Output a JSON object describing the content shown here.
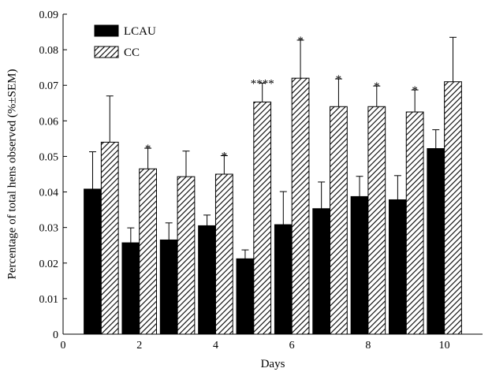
{
  "chart_data": {
    "type": "bar",
    "xlabel": "Days",
    "ylabel": "Percentage of total hens observed (%±SEM)",
    "xlim": [
      0,
      11
    ],
    "ylim": [
      0,
      0.09
    ],
    "x_ticks": [
      "0",
      "2",
      "4",
      "6",
      "8",
      "10"
    ],
    "y_ticks": [
      "0",
      "0.01",
      "0.02",
      "0.03",
      "0.04",
      "0.05",
      "0.06",
      "0.07",
      "0.08",
      "0.09"
    ],
    "categories": [
      1,
      2,
      3,
      4,
      5,
      6,
      7,
      8,
      9,
      10
    ],
    "series": [
      {
        "name": "LCAU",
        "fill": "#000000",
        "values": [
          0.0408,
          0.0257,
          0.0265,
          0.0305,
          0.0212,
          0.0308,
          0.0353,
          0.0387,
          0.0378,
          0.0522
        ],
        "errors": [
          0.0105,
          0.0042,
          0.0048,
          0.003,
          0.0025,
          0.0093,
          0.0075,
          0.0057,
          0.0068,
          0.0053
        ]
      },
      {
        "name": "CC",
        "fill": "hatched",
        "values": [
          0.054,
          0.0465,
          0.0443,
          0.045,
          0.0653,
          0.072,
          0.064,
          0.064,
          0.0625,
          0.071
        ],
        "errors": [
          0.013,
          0.0058,
          0.0072,
          0.0052,
          0.0053,
          0.0107,
          0.0078,
          0.0058,
          0.0062,
          0.0125
        ]
      }
    ],
    "annotations": [
      {
        "x": 2,
        "text": "*"
      },
      {
        "x": 4,
        "text": "*"
      },
      {
        "x": 5,
        "text": "****"
      },
      {
        "x": 6,
        "text": "*"
      },
      {
        "x": 7,
        "text": "*"
      },
      {
        "x": 8,
        "text": "*"
      },
      {
        "x": 9,
        "text": "*"
      }
    ],
    "legend_position": "top-left",
    "grid": false
  }
}
